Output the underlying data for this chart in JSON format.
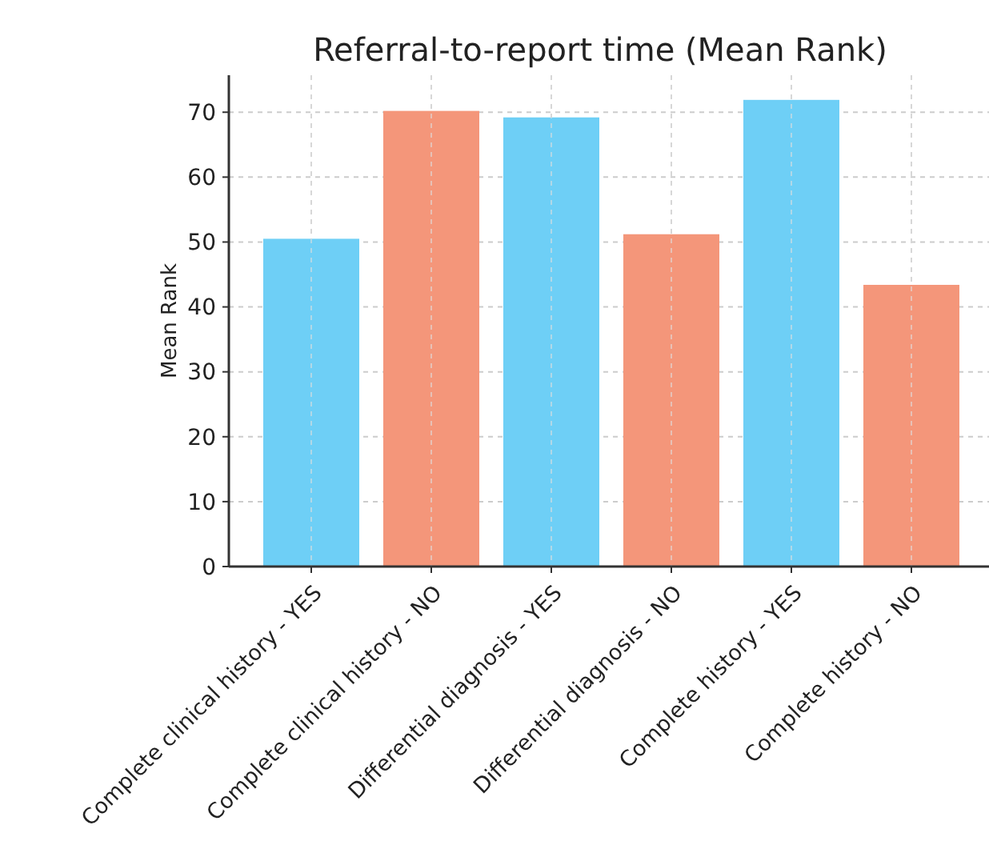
{
  "chart_data": {
    "type": "bar",
    "title": "Referral-to-report time (Mean Rank)",
    "ylabel": "Mean Rank",
    "categories": [
      "Complete clinical history - YES",
      "Complete clinical history - NO",
      "Differential diagnosis - YES",
      "Differential diagnosis - NO",
      "Complete history - YES",
      "Complete history - NO"
    ],
    "values": [
      50.5,
      70.2,
      69.2,
      51.2,
      71.9,
      43.4
    ],
    "colors": [
      "#6ecff6",
      "#f4967a",
      "#6ecff6",
      "#f4967a",
      "#6ecff6",
      "#f4967a"
    ],
    "ylim": [
      0,
      75.7
    ],
    "yticks": [
      0,
      10,
      20,
      30,
      40,
      50,
      60,
      70
    ],
    "grid": true
  }
}
